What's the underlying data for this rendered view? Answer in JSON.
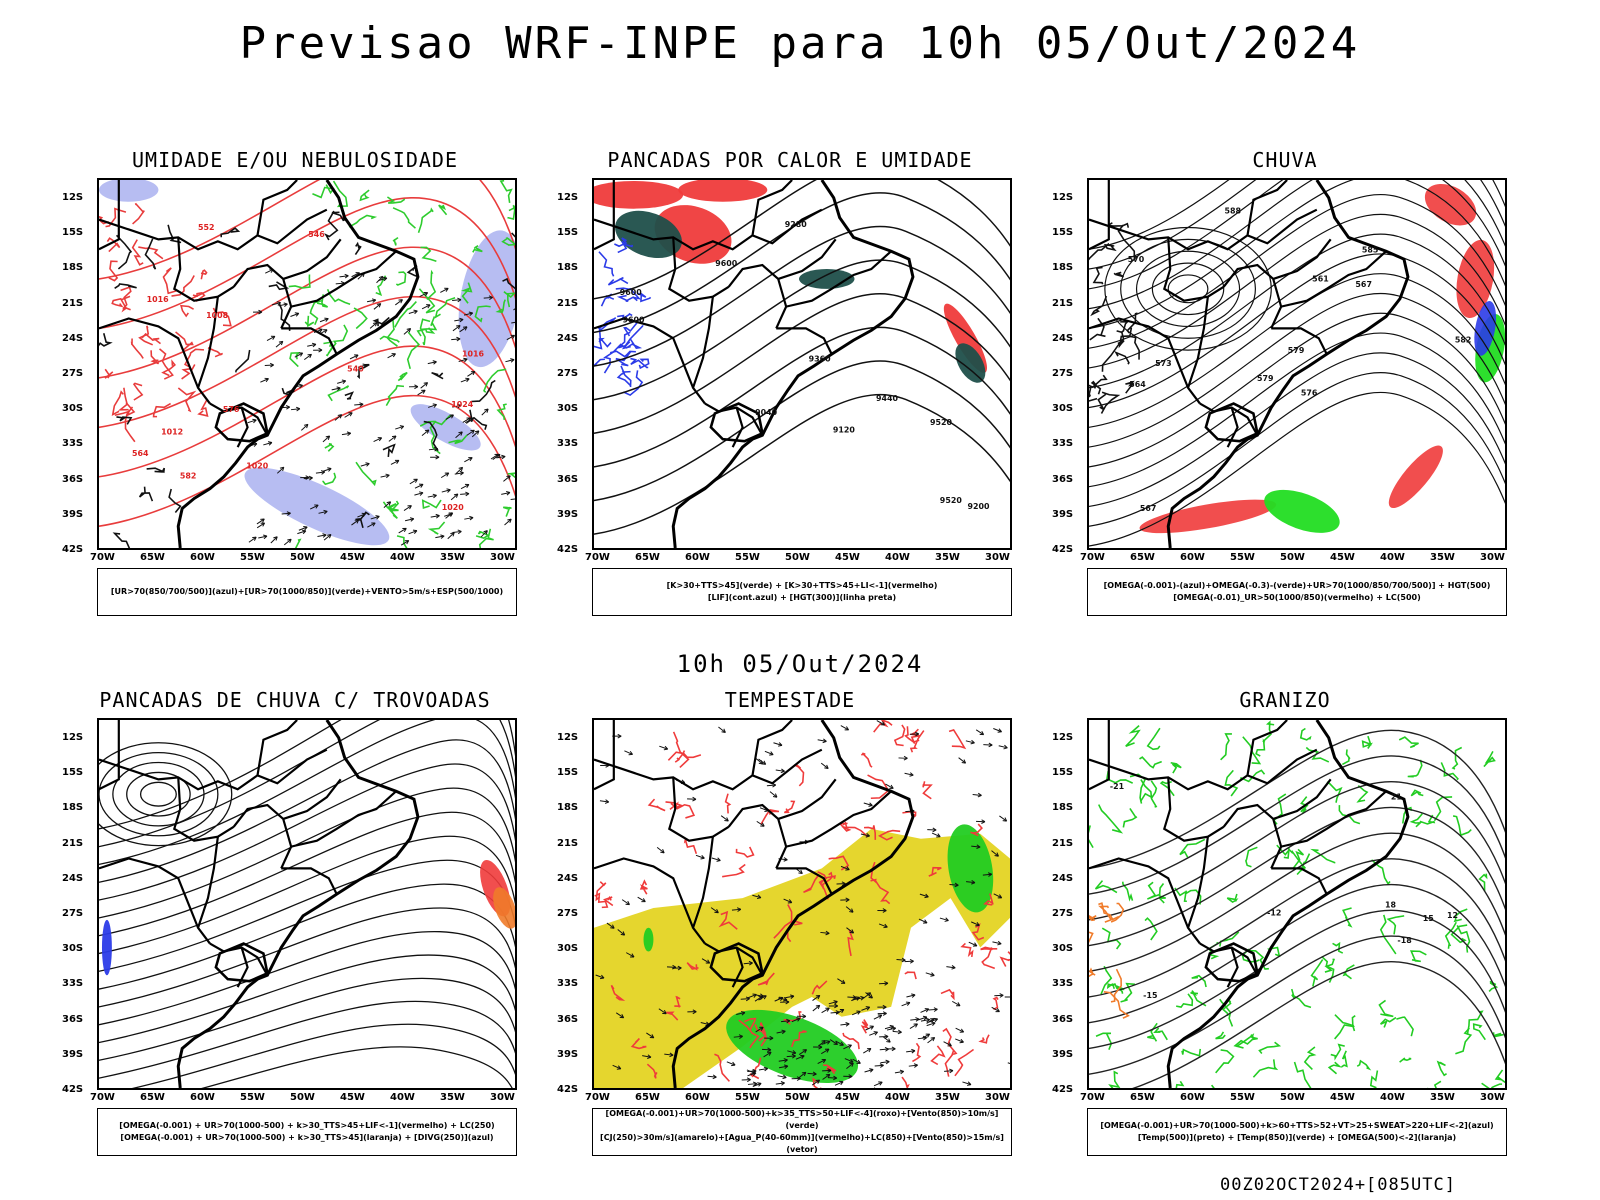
{
  "page": {
    "main_title": "Previsao WRF-INPE  para 10h 05/Out/2024",
    "mid_title": "10h 05/Out/2024",
    "footer": "00Z02OCT2024+[085UTC]"
  },
  "axes": {
    "lat_labels": [
      "12S",
      "15S",
      "18S",
      "21S",
      "24S",
      "27S",
      "30S",
      "33S",
      "36S",
      "39S",
      "42S"
    ],
    "lon_labels": [
      "70W",
      "65W",
      "60W",
      "55W",
      "50W",
      "45W",
      "40W",
      "35W",
      "30W"
    ]
  },
  "panels": [
    {
      "title": "UMIDADE E/OU NEBULOSIDADE",
      "legend": [
        "[UR>70(850/700/500)](azul)+[UR>70(1000/850)](verde)+VENTO>5m/s+ESP(500/1000)"
      ],
      "contour_labels": [
        "1008",
        "1012",
        "1016",
        "1020",
        "1024",
        "1016",
        "1020",
        "576",
        "582",
        "552",
        "546",
        "564",
        "540"
      ],
      "colors": {
        "a": "#7b86e8",
        "b": "#2ecc2e",
        "c": "#e83c3c"
      }
    },
    {
      "title": "PANCADAS POR CALOR E UMIDADE",
      "legend": [
        "[K>30+TTS>45](verde)  +  [K>30+TTS>45+LI<-1](vermelho)",
        "[LIF](cont.azul)  +  [HGT(300)](linha preta)"
      ],
      "contour_labels": [
        "9600",
        "9520",
        "9600",
        "9520",
        "9440",
        "9360",
        "9280",
        "9200",
        "9120",
        "9040",
        "9600"
      ],
      "colors": {
        "a": "#ef3b3b",
        "b": "#1f4f4a",
        "c": "#2b3be8"
      }
    },
    {
      "title": "CHUVA",
      "legend": [
        "[OMEGA(-0.001)-(azul)+OMEGA(-0.3)-(verde)+UR>70(1000/850/700/500)]  +  HGT(500)",
        "[OMEGA(-0.01)_UR>50(1000/850)(vermelho)  +  LC(500)"
      ],
      "contour_labels": [
        "588",
        "585",
        "582",
        "579",
        "576",
        "573",
        "570",
        "567",
        "564",
        "561",
        "579",
        "567"
      ],
      "colors": {
        "a": "#2b3be8",
        "b": "#22dd22",
        "c": "#ef3b3b"
      }
    },
    {
      "title": "PANCADAS DE CHUVA C/ TROVOADAS",
      "legend": [
        "[OMEGA(-0.001)  +  UR>70(1000-500)  +  k>30_TTS>45+LIF<-1](vermelho)  +  LC(250)",
        "[OMEGA(-0.001)  +  UR>70(1000-500)  +  k>30_TTS>45](laranja)  +  [DIVG(250)](azul)"
      ],
      "contour_labels": [],
      "colors": {
        "a": "#2b3be8",
        "b": "#f07b2a",
        "c": "#ef3b3b"
      }
    },
    {
      "title": "TEMPESTADE",
      "legend": [
        "[OMEGA(-0.001)+UR>70(1000-500)+k>35_TTS>50+LIF<-4](roxo)+[Vento(850)>10m/s](verde)",
        "[CJ(250)>30m/s](amarelo)+[Agua_P(40-60mm)](vermelho)+LC(850)+[Vento(850)>15m/s](vetor)"
      ],
      "contour_labels": [],
      "colors": {
        "a": "#e5d62e",
        "b": "#22cc22",
        "c": "#ef3b3b"
      }
    },
    {
      "title": "GRANIZO",
      "legend": [
        "[OMEGA(-0.001)+UR>70(1000-500)+k>60+TTS>52+VT>25+SWEAT>220+LIF<-2](azul)",
        "[Temp(500)](preto)  +  [Temp(850)](verde)  +  [OMEGA(500)<-2](laranja)"
      ],
      "contour_labels": [
        "-12",
        "-15",
        "-18",
        "-21",
        "12",
        "15",
        "18",
        "21"
      ],
      "colors": {
        "a": "#22cc22",
        "b": "#f07b2a",
        "c": "#111111"
      }
    }
  ]
}
